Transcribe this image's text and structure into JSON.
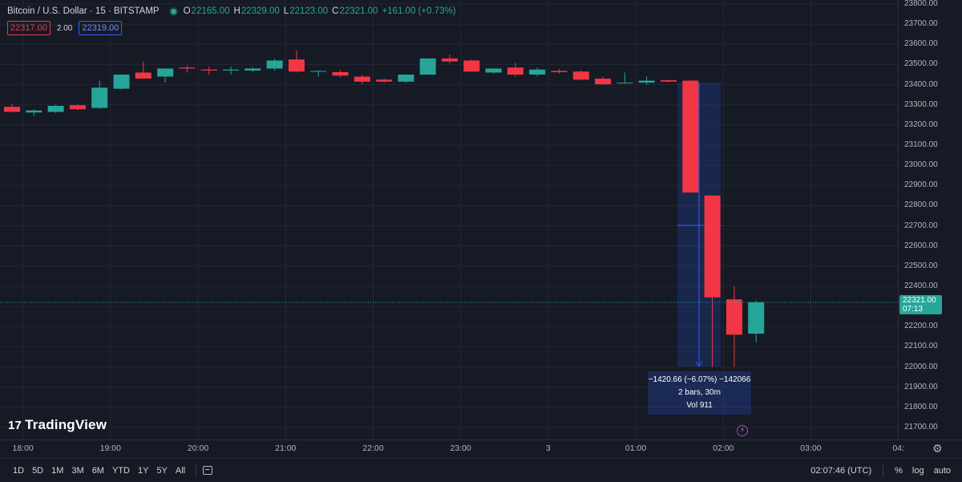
{
  "header": {
    "symbol": "Bitcoin / U.S. Dollar · 15 · BITSTAMP",
    "open_label": "O",
    "open": "22165.00",
    "high_label": "H",
    "high": "22329.00",
    "low_label": "L",
    "low": "22123.00",
    "close_label": "C",
    "close": "22321.00",
    "change": "+161.00 (+0.73%)"
  },
  "quotes": {
    "sell": "22317.00",
    "spread": "2.00",
    "buy": "22319.00"
  },
  "logo": {
    "mark": "17",
    "text": "TradingView"
  },
  "current_price": {
    "price": "22321.00",
    "countdown": "07:13"
  },
  "measure": {
    "line1": "−1420.66 (−6.07%) −142066",
    "line2": "2 bars, 30m",
    "line3": "Vol 911"
  },
  "bottom_bar": {
    "ranges": [
      "1D",
      "5D",
      "1M",
      "3M",
      "6M",
      "YTD",
      "1Y",
      "5Y",
      "All"
    ],
    "clock": "02:07:46 (UTC)",
    "percent": "%",
    "log": "log",
    "auto": "auto"
  },
  "colors": {
    "up": "#26a69a",
    "down": "#f23645",
    "background": "#161a25",
    "grid": "#232733",
    "measure": "#2962ff"
  },
  "icons": {
    "calendar": "calendar-icon",
    "settings": "gear-icon",
    "alert": "lightning-icon"
  },
  "chart_data": {
    "type": "candlestick",
    "title": "Bitcoin / U.S. Dollar · 15 · BITSTAMP",
    "y_ticks": [
      23800,
      23700,
      23600,
      23500,
      23400,
      23300,
      23200,
      23100,
      23000,
      22900,
      22800,
      22700,
      22600,
      22500,
      22400,
      22300,
      22200,
      22100,
      22000,
      21900,
      21800,
      21700
    ],
    "y_tick_labels": [
      "23800.00",
      "23700.00",
      "23600.00",
      "23500.00",
      "23400.00",
      "23300.00",
      "23200.00",
      "23100.00",
      "23000.00",
      "22900.00",
      "22800.00",
      "22700.00",
      "22600.00",
      "22500.00",
      "22400.00",
      "22300.00",
      "22200.00",
      "22100.00",
      "22000.00",
      "21900.00",
      "21800.00",
      "21700.00"
    ],
    "ylim": [
      21640,
      23820
    ],
    "x_tick_labels": [
      "18:00",
      "19:00",
      "20:00",
      "21:00",
      "22:00",
      "23:00",
      "3",
      "01:00",
      "02:00",
      "03:00",
      "04:"
    ],
    "x_ticks_bar_index": [
      1.5,
      5.5,
      9.5,
      13.5,
      17.5,
      21.5,
      25.5,
      29.5,
      33.5,
      37.5,
      41.5
    ],
    "grid": true,
    "candles": [
      {
        "o": 23290,
        "h": 23305,
        "l": 23265,
        "c": 23265
      },
      {
        "o": 23262,
        "h": 23278,
        "l": 23245,
        "c": 23272
      },
      {
        "o": 23265,
        "h": 23300,
        "l": 23260,
        "c": 23295
      },
      {
        "o": 23298,
        "h": 23305,
        "l": 23275,
        "c": 23278
      },
      {
        "o": 23285,
        "h": 23420,
        "l": 23280,
        "c": 23385
      },
      {
        "o": 23380,
        "h": 23450,
        "l": 23375,
        "c": 23450
      },
      {
        "o": 23460,
        "h": 23515,
        "l": 23430,
        "c": 23430
      },
      {
        "o": 23440,
        "h": 23480,
        "l": 23410,
        "c": 23480
      },
      {
        "o": 23485,
        "h": 23495,
        "l": 23460,
        "c": 23480
      },
      {
        "o": 23475,
        "h": 23490,
        "l": 23450,
        "c": 23470
      },
      {
        "o": 23470,
        "h": 23490,
        "l": 23450,
        "c": 23475
      },
      {
        "o": 23470,
        "h": 23485,
        "l": 23462,
        "c": 23480
      },
      {
        "o": 23480,
        "h": 23530,
        "l": 23470,
        "c": 23520
      },
      {
        "o": 23525,
        "h": 23570,
        "l": 23460,
        "c": 23465
      },
      {
        "o": 23465,
        "h": 23470,
        "l": 23440,
        "c": 23468
      },
      {
        "o": 23462,
        "h": 23472,
        "l": 23435,
        "c": 23445
      },
      {
        "o": 23440,
        "h": 23450,
        "l": 23400,
        "c": 23415
      },
      {
        "o": 23425,
        "h": 23430,
        "l": 23408,
        "c": 23415
      },
      {
        "o": 23415,
        "h": 23450,
        "l": 23410,
        "c": 23450
      },
      {
        "o": 23450,
        "h": 23530,
        "l": 23450,
        "c": 23530
      },
      {
        "o": 23530,
        "h": 23550,
        "l": 23505,
        "c": 23515
      },
      {
        "o": 23520,
        "h": 23525,
        "l": 23465,
        "c": 23465
      },
      {
        "o": 23460,
        "h": 23480,
        "l": 23455,
        "c": 23480
      },
      {
        "o": 23485,
        "h": 23510,
        "l": 23440,
        "c": 23450
      },
      {
        "o": 23450,
        "h": 23485,
        "l": 23440,
        "c": 23475
      },
      {
        "o": 23468,
        "h": 23478,
        "l": 23455,
        "c": 23462
      },
      {
        "o": 23465,
        "h": 23470,
        "l": 23420,
        "c": 23425
      },
      {
        "o": 23430,
        "h": 23440,
        "l": 23400,
        "c": 23402
      },
      {
        "o": 23410,
        "h": 23460,
        "l": 23405,
        "c": 23410
      },
      {
        "o": 23410,
        "h": 23440,
        "l": 23400,
        "c": 23420
      },
      {
        "o": 23422,
        "h": 23425,
        "l": 23412,
        "c": 23415
      },
      {
        "o": 23420,
        "h": 23425,
        "l": 22865,
        "c": 22865
      },
      {
        "o": 22850,
        "h": 22850,
        "l": 22000,
        "c": 22345
      },
      {
        "o": 22335,
        "h": 22400,
        "l": 22000,
        "c": 22160
      },
      {
        "o": 22165,
        "h": 22329,
        "l": 22123,
        "c": 22321
      }
    ]
  }
}
